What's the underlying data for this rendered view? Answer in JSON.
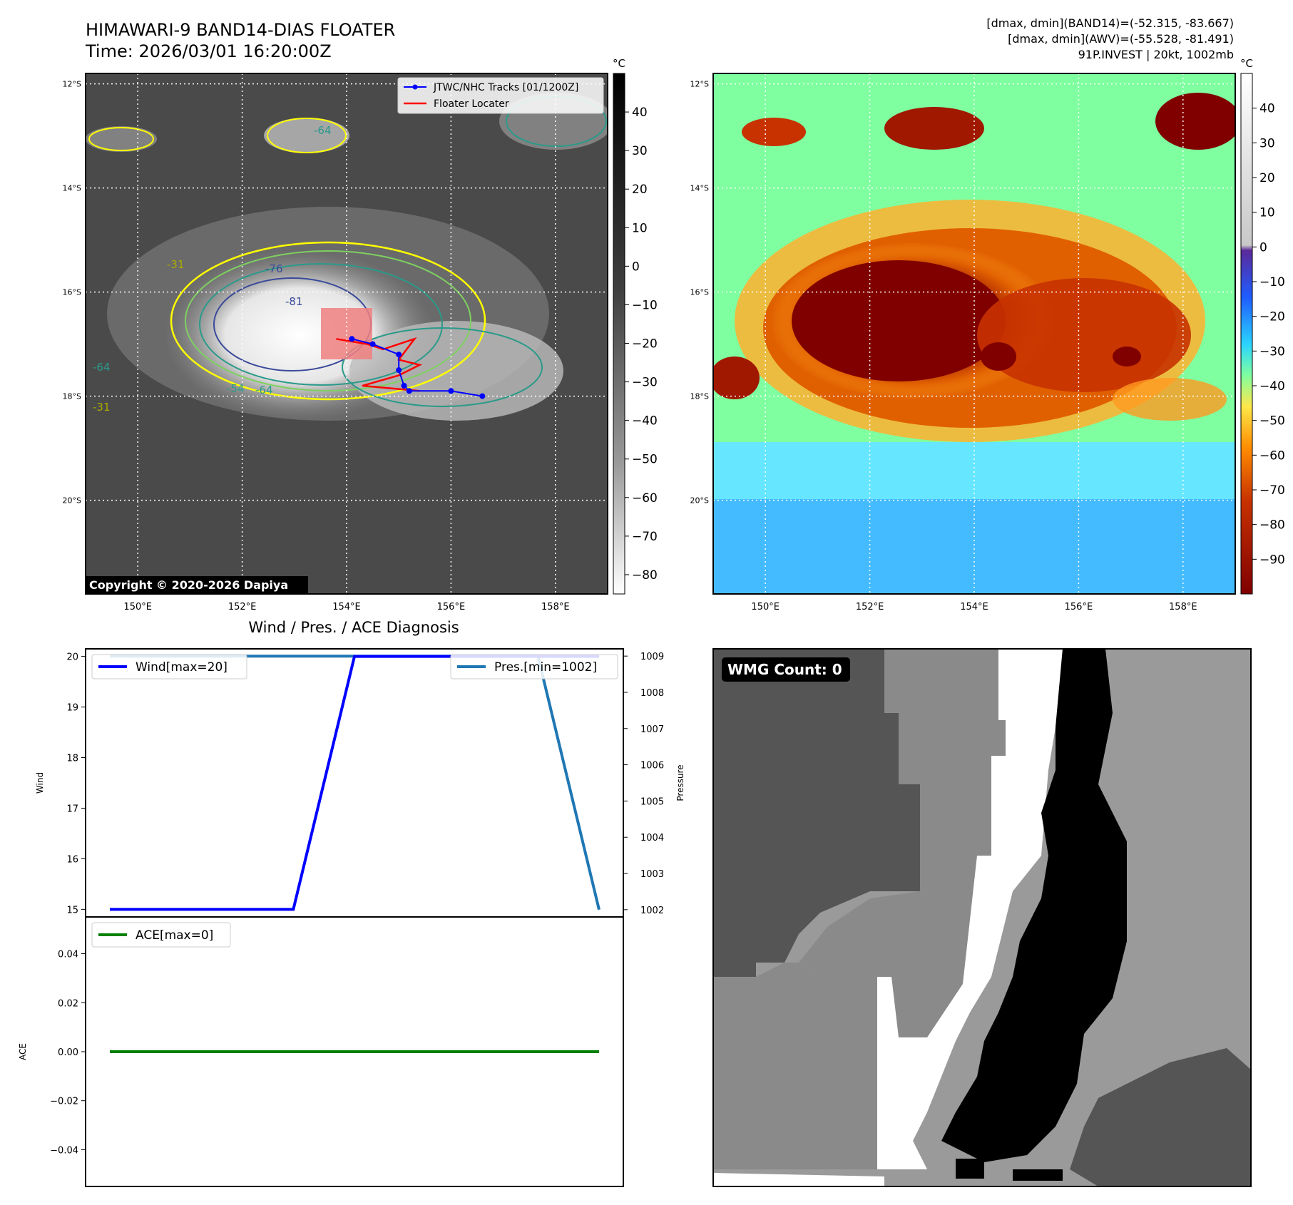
{
  "header": {
    "title": "HIMAWARI-9 BAND14-DIAS FLOATER",
    "time": "Time: 2026/03/01 16:20:00Z",
    "stats": [
      "[dmax, dmin](BAND14)=(-52.315, -83.667)",
      "[dmax, dmin](AWV)=(-55.528, -81.491)",
      "91P.INVEST | 20kt, 1002mb"
    ]
  },
  "map": {
    "lon_ticks": [
      "150°E",
      "152°E",
      "154°E",
      "156°E",
      "158°E"
    ],
    "lat_ticks": [
      "12°S",
      "14°S",
      "16°S",
      "18°S",
      "20°S"
    ],
    "lon_range": [
      149,
      159
    ],
    "lat_range": [
      -21.8,
      -11.8
    ],
    "copyright": "Copyright © 2020-2026 Dapiya",
    "legend": [
      "JTWC/NHC Tracks [01/1200Z]",
      "Floater Locater"
    ],
    "contour_labels": [
      "-76",
      "-81",
      "-64",
      "-54",
      "-64",
      "-31",
      "-64",
      "-31",
      "-54",
      "-64"
    ],
    "colors": {
      "track": "#0000ff",
      "floater": "#ff0000",
      "box": "#f08080"
    },
    "track_points": [
      [
        154.1,
        -16.9
      ],
      [
        154.5,
        -17.0
      ],
      [
        155.0,
        -17.2
      ],
      [
        155.0,
        -17.5
      ],
      [
        155.1,
        -17.8
      ],
      [
        155.2,
        -17.9
      ],
      [
        156.0,
        -17.9
      ],
      [
        156.6,
        -18.0
      ]
    ],
    "floater_path": [
      [
        153.8,
        -16.9
      ],
      [
        154.4,
        -17.0
      ],
      [
        154.7,
        -17.1
      ],
      [
        155.0,
        -17.0
      ],
      [
        155.3,
        -16.9
      ],
      [
        155.0,
        -17.3
      ],
      [
        155.4,
        -17.4
      ],
      [
        155.0,
        -17.6
      ],
      [
        154.3,
        -17.8
      ],
      [
        155.4,
        -17.9
      ]
    ]
  },
  "colorbar_ir": {
    "unit": "°C",
    "ticks": [
      "40",
      "30",
      "20",
      "10",
      "0",
      "−10",
      "−20",
      "−30",
      "−40",
      "−50",
      "−60",
      "−70",
      "−80"
    ]
  },
  "colorbar_avw": {
    "unit": "°C",
    "ticks": [
      "40",
      "30",
      "20",
      "10",
      "0",
      "−10",
      "−20",
      "−30",
      "−40",
      "−50",
      "−60",
      "−70",
      "−80",
      "−90"
    ]
  },
  "diag": {
    "title": "Wind / Pres. / ACE Diagnosis",
    "wind_label": "Wind",
    "pres_label": "Pressure",
    "ace_label": "ACE",
    "wind_legend": "Wind[max=20]",
    "pres_legend": "Pres.[min=1002]",
    "ace_legend": "ACE[max=0]",
    "wind_ticks": [
      "20",
      "19",
      "18",
      "17",
      "16",
      "15"
    ],
    "pres_ticks": [
      "1009",
      "1008",
      "1007",
      "1006",
      "1005",
      "1004",
      "1003",
      "1002"
    ],
    "ace_ticks": [
      "0.04",
      "0.02",
      "0.00",
      "−0.02",
      "−0.04"
    ]
  },
  "wmg": {
    "label": "WMG Count: 0"
  },
  "chart_data": [
    {
      "type": "line",
      "title": "Wind / Pres. / ACE Diagnosis",
      "ylabel": "Wind",
      "ylim": [
        14.85,
        20.15
      ],
      "x": [
        0,
        1,
        2,
        3,
        4,
        5,
        6,
        7,
        8
      ],
      "series": [
        {
          "name": "Wind[max=20]",
          "color": "#0000ff",
          "values": [
            15,
            15,
            15,
            15,
            20,
            20,
            20,
            20,
            20
          ]
        }
      ]
    },
    {
      "type": "line",
      "ylabel": "Pressure",
      "ylim": [
        1001.8,
        1009.2
      ],
      "x": [
        0,
        1,
        2,
        3,
        4,
        5,
        6,
        7,
        8
      ],
      "series": [
        {
          "name": "Pres.[min=1002]",
          "color": "#1f77b4",
          "values": [
            1009,
            1009,
            1009,
            1009,
            1009,
            1009,
            1009,
            1009,
            1002
          ]
        }
      ]
    },
    {
      "type": "line",
      "ylabel": "ACE",
      "ylim": [
        -0.055,
        0.055
      ],
      "x": [
        0,
        1,
        2,
        3,
        4,
        5,
        6,
        7,
        8
      ],
      "series": [
        {
          "name": "ACE[max=0]",
          "color": "#008000",
          "values": [
            0,
            0,
            0,
            0,
            0,
            0,
            0,
            0,
            0
          ]
        }
      ]
    }
  ]
}
